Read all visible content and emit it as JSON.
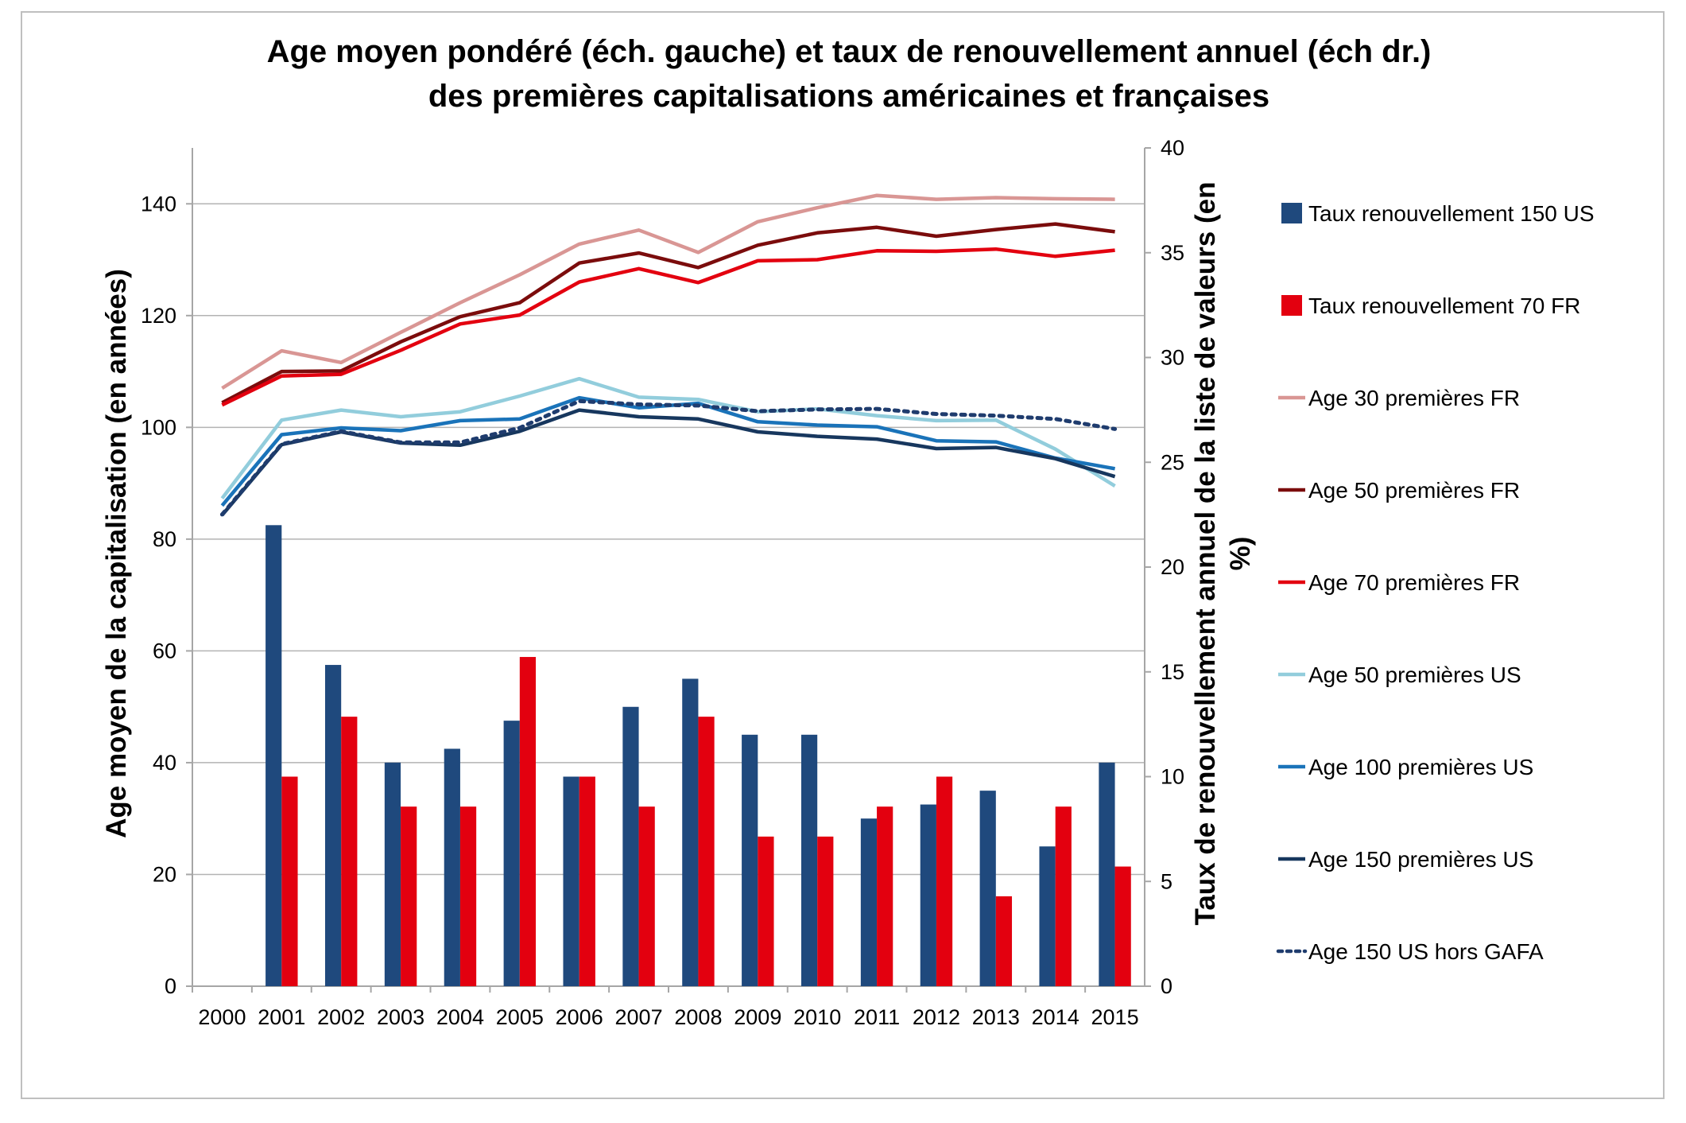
{
  "chart_data": {
    "type": "bar",
    "title_lines": [
      "Age moyen pondéré (éch. gauche) et taux de renouvellement annuel (éch dr.)",
      "des premières capitalisations américaines et françaises"
    ],
    "ylabel_left": "Age moyen de la capitalisation (en années)",
    "ylabel_right_lines": [
      "Taux de renouvellement annuel de la liste de valeurs (en",
      "%)"
    ],
    "categories": [
      "2000",
      "2001",
      "2002",
      "2003",
      "2004",
      "2005",
      "2006",
      "2007",
      "2008",
      "2009",
      "2010",
      "2011",
      "2012",
      "2013",
      "2014",
      "2015"
    ],
    "ylim_left": [
      0,
      150
    ],
    "yticks_left": [
      0,
      20,
      40,
      60,
      80,
      100,
      120,
      140
    ],
    "ylim_right": [
      0,
      40
    ],
    "yticks_right": [
      0,
      5,
      10,
      15,
      20,
      25,
      30,
      35,
      40
    ],
    "grid": true,
    "legend_position": "right",
    "bar_series": [
      {
        "name": "Taux renouvellement 150 US",
        "color": "#1f497d",
        "axis": "right",
        "values": [
          null,
          22,
          15.33,
          10.67,
          11.33,
          12.67,
          10,
          13.33,
          14.67,
          12,
          12,
          8,
          8.67,
          9.33,
          6.67,
          10.67
        ]
      },
      {
        "name": "Taux renouvellement 70 FR",
        "color": "#e3000f",
        "axis": "right",
        "values": [
          null,
          10,
          12.86,
          8.57,
          8.57,
          15.71,
          10,
          8.57,
          12.86,
          7.14,
          7.14,
          8.57,
          10,
          4.29,
          8.57,
          5.71
        ]
      }
    ],
    "line_series": [
      {
        "name": "Age 30 premières FR",
        "color": "#d99694",
        "dash": false,
        "axis": "left",
        "values": [
          107,
          113.7,
          111.6,
          117,
          122.3,
          127.3,
          132.8,
          135.3,
          131.3,
          136.8,
          139.3,
          141.5,
          140.8,
          141.1,
          140.9,
          140.8
        ]
      },
      {
        "name": "Age 50 premières FR",
        "color": "#7b0c0c",
        "dash": false,
        "axis": "left",
        "values": [
          104.4,
          110,
          110.1,
          115.3,
          119.8,
          122.3,
          129.4,
          131.2,
          128.6,
          132.6,
          134.8,
          135.8,
          134.2,
          135.4,
          136.4,
          135
        ]
      },
      {
        "name": "Age 70  premières FR",
        "color": "#e3000f",
        "dash": false,
        "axis": "left",
        "values": [
          104,
          109.2,
          109.5,
          113.8,
          118.5,
          120.1,
          126,
          128.4,
          125.9,
          129.8,
          130,
          131.6,
          131.5,
          131.9,
          130.6,
          131.7
        ]
      },
      {
        "name": "Age 50 premières  US",
        "color": "#92cddc",
        "dash": false,
        "axis": "left",
        "values": [
          87.3,
          101.3,
          103.1,
          101.9,
          102.8,
          105.6,
          108.7,
          105.4,
          105,
          102.8,
          103.3,
          102.1,
          101.2,
          101.3,
          96.1,
          89.5
        ]
      },
      {
        "name": "Age 100 premières US",
        "color": "#1a73b9",
        "dash": false,
        "axis": "left",
        "values": [
          86,
          98.7,
          99.9,
          99.4,
          101.2,
          101.5,
          105.3,
          103.5,
          104.3,
          101,
          100.4,
          100.1,
          97.6,
          97.4,
          94.5,
          92.6
        ]
      },
      {
        "name": "Age 150 premières US",
        "color": "#17375e",
        "dash": false,
        "axis": "left",
        "values": [
          84.3,
          96.9,
          99.2,
          97.2,
          96.8,
          99.3,
          103.1,
          101.9,
          101.5,
          99.2,
          98.4,
          97.9,
          96.2,
          96.4,
          94.4,
          91.2
        ]
      },
      {
        "name": "Age 150 US hors GAFA",
        "color": "#1f3c6e",
        "dash": true,
        "axis": "left",
        "values": [
          84.4,
          97,
          99.3,
          97.3,
          97.3,
          99.9,
          104.7,
          104.1,
          103.9,
          102.9,
          103.2,
          103.3,
          102.4,
          102.1,
          101.5,
          99.7
        ]
      }
    ]
  }
}
